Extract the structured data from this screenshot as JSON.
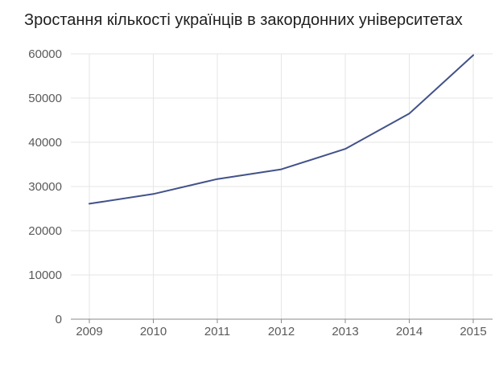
{
  "chart_data": {
    "type": "line",
    "title": "Зростання кількості українців в закордонних університетах",
    "xlabel": "",
    "ylabel": "",
    "x": [
      "2009",
      "2010",
      "2011",
      "2012",
      "2013",
      "2014",
      "2015"
    ],
    "series": [
      {
        "values": [
          26100,
          28300,
          31700,
          33900,
          38500,
          46500,
          59700
        ],
        "color": "#42528a"
      }
    ],
    "ylim": [
      0,
      60000
    ],
    "yticks": [
      "0",
      "10000",
      "20000",
      "30000",
      "40000",
      "50000",
      "60000"
    ],
    "grid": true,
    "legend": "none"
  }
}
